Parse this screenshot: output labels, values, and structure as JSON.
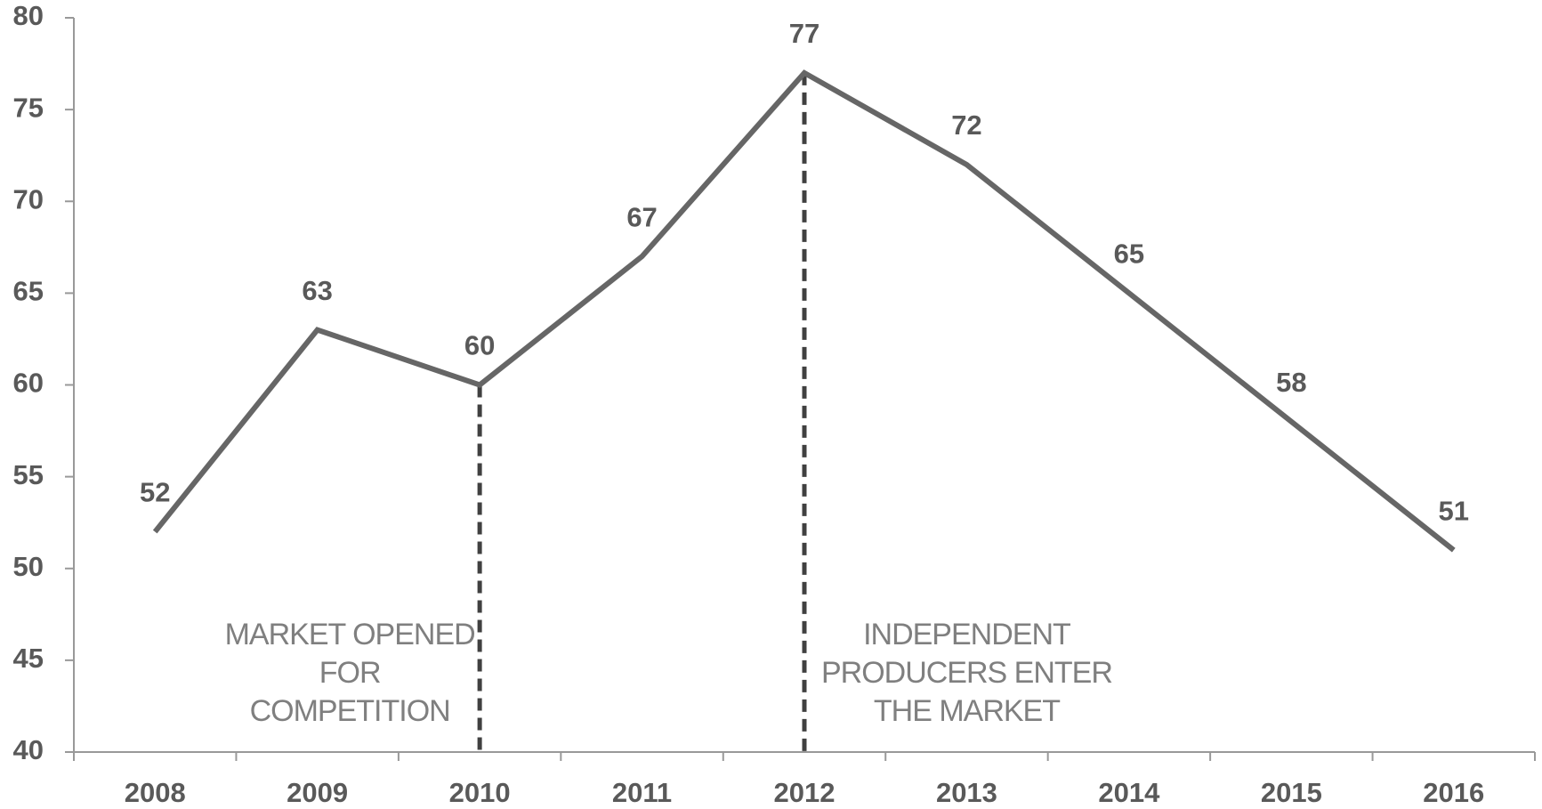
{
  "chart_data": {
    "type": "line",
    "categories": [
      "2008",
      "2009",
      "2010",
      "2011",
      "2012",
      "2013",
      "2014",
      "2015",
      "2016"
    ],
    "series": [
      {
        "color": "#666666",
        "values": [
          52,
          63,
          60,
          67,
          77,
          72,
          65,
          58,
          51
        ]
      }
    ],
    "ylim": [
      40,
      80
    ],
    "yticks": [
      40,
      45,
      50,
      55,
      60,
      65,
      70,
      75,
      80
    ],
    "grid": false,
    "annotations": [
      {
        "x": "2010",
        "lines": [
          "MARKET OPENED",
          "FOR",
          "COMPETITION"
        ]
      },
      {
        "x": "2012",
        "lines": [
          "INDEPENDENT",
          "PRODUCERS ENTER",
          "THE MARKET"
        ]
      }
    ]
  }
}
